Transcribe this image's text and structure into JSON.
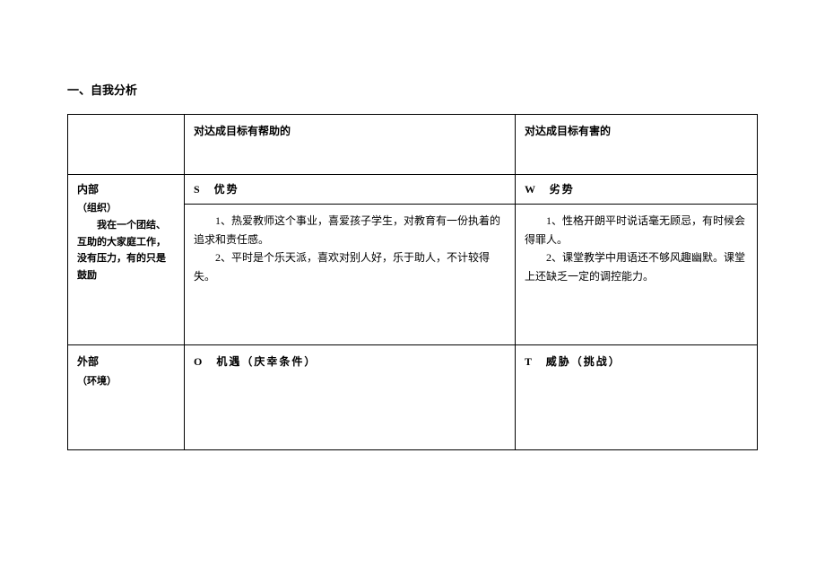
{
  "title": "一、自我分析",
  "header": {
    "col2": "对达成目标有帮助的",
    "col3": "对达成目标有害的"
  },
  "internal": {
    "label1": "内部",
    "label2": "（组织）",
    "desc": "我在一个团结、互助的大家庭工作，没有压力，有的只是鼓励",
    "s_label": "S　优势",
    "w_label": "W　劣势",
    "s_body1": "1、热爱教师这个事业，喜爱孩子学生，对教育有一份执着的追求和责任感。",
    "s_body2": "2、平时是个乐天派，喜欢对别人好，乐于助人，不计较得失。",
    "w_body1": "1、性格开朗平时说话毫无顾忌，有时候会得罪人。",
    "w_body2": "2、课堂教学中用语还不够风趣幽默。课堂上还缺乏一定的调控能力。"
  },
  "external": {
    "label1": "外部",
    "label2": "（环境）",
    "o_label": "O　机遇（庆幸条件）",
    "t_label": "T　威胁（挑战）"
  }
}
